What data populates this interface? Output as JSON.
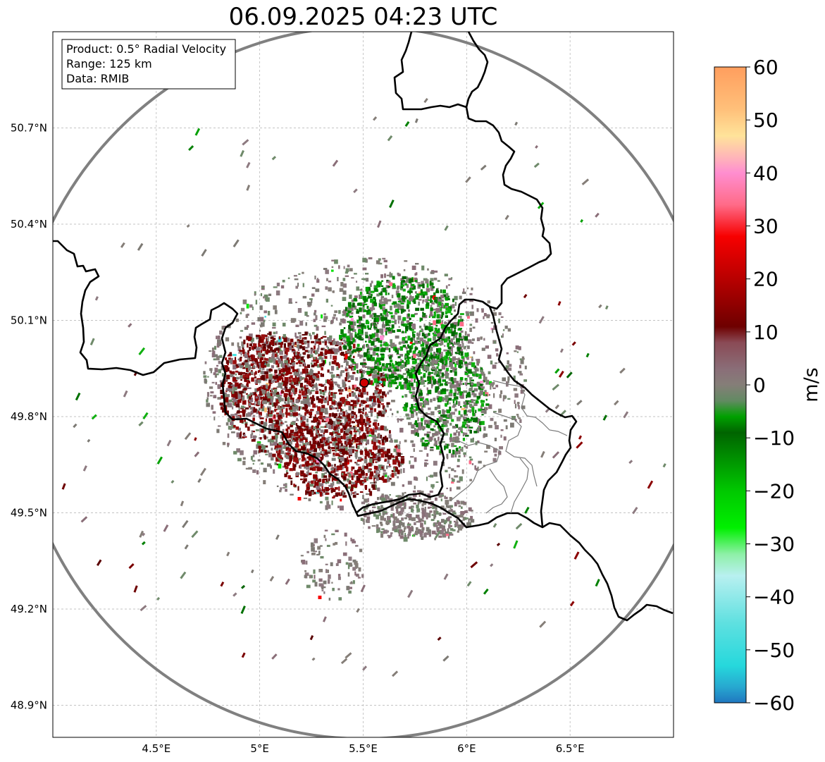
{
  "title": "06.09.2025 04:23 UTC",
  "info_box": {
    "product": "Product: 0.5° Radial Velocity",
    "range": "Range: 125 km",
    "data": "Data: RMIB"
  },
  "map": {
    "lon_range": [
      4.0,
      7.0
    ],
    "lat_range": [
      48.8,
      51.0
    ],
    "radar_site": {
      "lon": 5.505,
      "lat": 49.914
    },
    "lon_ticks": [
      4.5,
      5.0,
      5.5,
      6.0,
      6.5
    ],
    "lon_labels": [
      "4.5°E",
      "5°E",
      "5.5°E",
      "6°E",
      "6.5°E"
    ],
    "lat_ticks": [
      48.9,
      49.2,
      49.5,
      49.8,
      50.1,
      50.4,
      50.7
    ],
    "lat_labels": [
      "48.9°N",
      "49.2°N",
      "49.5°N",
      "49.8°N",
      "50.1°N",
      "50.4°N",
      "50.7°N"
    ]
  },
  "colorbar": {
    "label": "m/s",
    "min": -60,
    "max": 60,
    "ticks": [
      60,
      50,
      40,
      30,
      20,
      10,
      0,
      -10,
      -20,
      -30,
      -40,
      -50,
      -60
    ],
    "tick_labels": [
      "60",
      "50",
      "40",
      "30",
      "20",
      "10",
      "0",
      "−10",
      "−20",
      "−30",
      "−40",
      "−50",
      "−60"
    ],
    "color_stops": [
      {
        "v": 60,
        "c": "#ff9e5e"
      },
      {
        "v": 52,
        "c": "#ffc07a"
      },
      {
        "v": 47,
        "c": "#ffe39a"
      },
      {
        "v": 43,
        "c": "#ffb6b8"
      },
      {
        "v": 40,
        "c": "#ff8ed0"
      },
      {
        "v": 34,
        "c": "#ff6b88"
      },
      {
        "v": 28,
        "c": "#f70000"
      },
      {
        "v": 20,
        "c": "#b80000"
      },
      {
        "v": 11,
        "c": "#6e0000"
      },
      {
        "v": 8,
        "c": "#8a4a55"
      },
      {
        "v": 3,
        "c": "#8a6e78"
      },
      {
        "v": 0,
        "c": "#857e78"
      },
      {
        "v": -3,
        "c": "#628a62"
      },
      {
        "v": -6,
        "c": "#00a000"
      },
      {
        "v": -9,
        "c": "#006400"
      },
      {
        "v": -20,
        "c": "#00c800"
      },
      {
        "v": -27,
        "c": "#00f000"
      },
      {
        "v": -32,
        "c": "#8ff0a8"
      },
      {
        "v": -36,
        "c": "#b8f0f0"
      },
      {
        "v": -45,
        "c": "#5ee0e0"
      },
      {
        "v": -53,
        "c": "#26d8dc"
      },
      {
        "v": -57,
        "c": "#27a8d0"
      },
      {
        "v": -60,
        "c": "#2077c0"
      }
    ]
  },
  "colors": {
    "range_ring": "#808080",
    "border": "#000000",
    "grid": "#b0b0b0",
    "radar_marker": "#d00000"
  }
}
